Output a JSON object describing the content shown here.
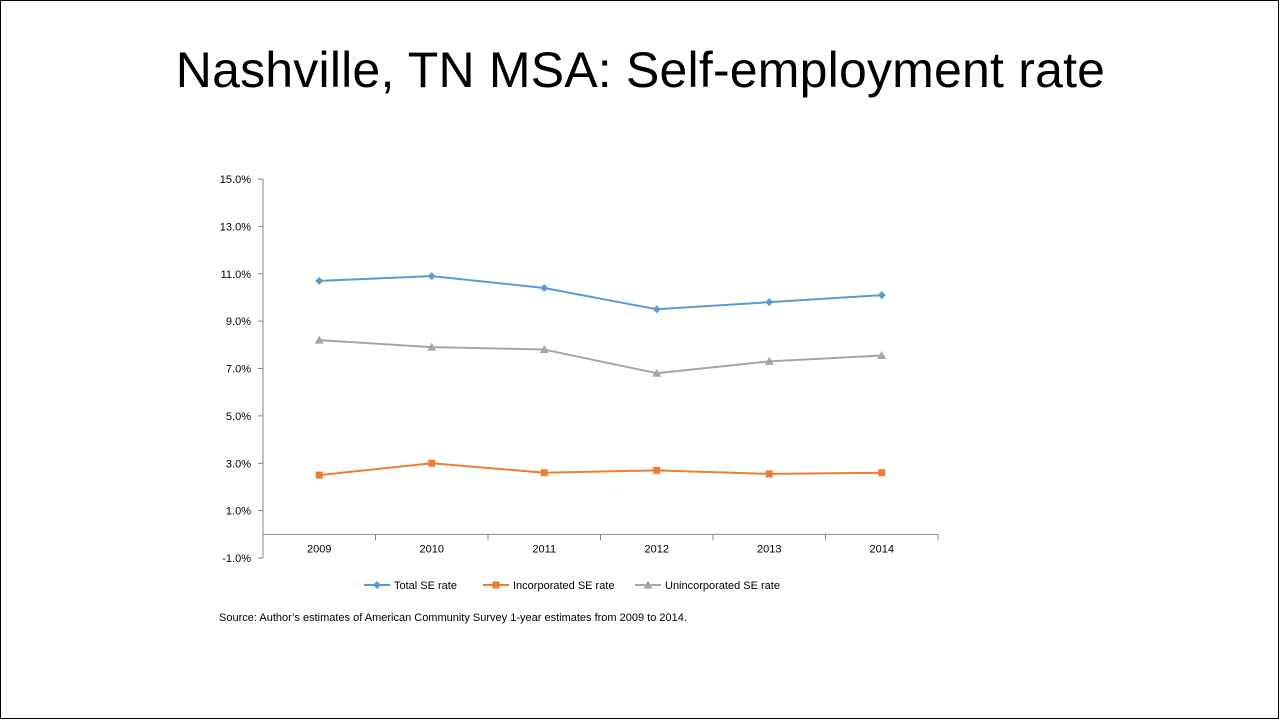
{
  "title": "Nashville, TN MSA: Self-employment rate",
  "source_note": "Source: Author’s estimates of American Community Survey 1-year estimates  from 2009 to 2014.",
  "chart_data": {
    "type": "line",
    "x": [
      "2009",
      "2010",
      "2011",
      "2012",
      "2013",
      "2014"
    ],
    "series": [
      {
        "name": "Total SE rate",
        "values": [
          10.7,
          10.9,
          10.4,
          9.5,
          9.8,
          10.1
        ],
        "color": "#5b9bd5",
        "marker": "diamond"
      },
      {
        "name": "Incorporated SE rate",
        "values": [
          2.5,
          3.0,
          2.6,
          2.7,
          2.55,
          2.6
        ],
        "color": "#ed7d31",
        "marker": "square"
      },
      {
        "name": "Unincorporated SE rate",
        "values": [
          8.2,
          7.9,
          7.8,
          6.8,
          7.3,
          7.55
        ],
        "color": "#a5a5a5",
        "marker": "triangle"
      }
    ],
    "ylim": [
      -1.0,
      15.0
    ],
    "yticks": [
      15.0,
      13.0,
      11.0,
      9.0,
      7.0,
      5.0,
      3.0,
      1.0,
      -1.0
    ],
    "ytick_labels": [
      "15.0%",
      "13.0%",
      "11.0%",
      "9.0%",
      "7.0%",
      "5.0%",
      "3.0%",
      "1.0%",
      "-1.0%"
    ],
    "x_axis_crosses_at": 0,
    "grid": false,
    "legend": "bottom",
    "xlabel": "",
    "ylabel": ""
  }
}
